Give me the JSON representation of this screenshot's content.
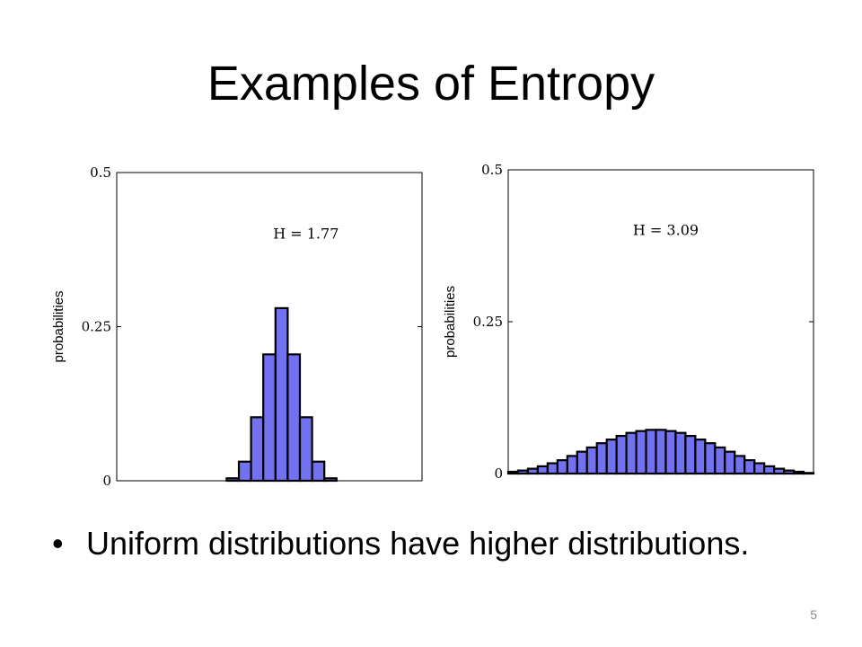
{
  "slide": {
    "title": "Examples of Entropy",
    "bullet_symbol": "•",
    "bullet_text": "Uniform distributions have higher distributions.",
    "slide_number": "5"
  },
  "colors": {
    "bar_fill": "#7272f0",
    "bar_edge": "#000000"
  },
  "chart_data": [
    {
      "type": "bar",
      "title": "",
      "xlabel": "",
      "ylabel": "probabilities",
      "ylim": [
        0,
        0.5
      ],
      "y_ticks": [
        {
          "value": 0,
          "label": "0"
        },
        {
          "value": 0.25,
          "label": "0.25"
        },
        {
          "value": 0.5,
          "label": "0.5"
        }
      ],
      "annotation": {
        "text": "H = 1.77",
        "x": 15,
        "y": 0.4
      },
      "x": [
        0,
        1,
        2,
        3,
        4,
        5,
        6,
        7,
        8,
        9,
        10,
        11,
        12,
        13,
        14,
        15,
        16,
        17,
        18,
        19,
        20,
        21,
        22,
        23,
        24
      ],
      "values": [
        0,
        0,
        0,
        0,
        0,
        0,
        0,
        0,
        0,
        0.004,
        0.031,
        0.103,
        0.205,
        0.28,
        0.205,
        0.103,
        0.031,
        0.004,
        0,
        0,
        0,
        0,
        0,
        0,
        0
      ],
      "xlim": [
        -0.5,
        24.5
      ],
      "grid": false,
      "legend": "none"
    },
    {
      "type": "bar",
      "title": "",
      "xlabel": "",
      "ylabel": "probabilities",
      "ylim": [
        0,
        0.5
      ],
      "y_ticks": [
        {
          "value": 0,
          "label": "0"
        },
        {
          "value": 0.25,
          "label": "0.25"
        },
        {
          "value": 0.5,
          "label": "0.5"
        }
      ],
      "annotation": {
        "text": "H = 3.09",
        "x": 15.5,
        "y": 0.4
      },
      "x": [
        0,
        1,
        2,
        3,
        4,
        5,
        6,
        7,
        8,
        9,
        10,
        11,
        12,
        13,
        14,
        15,
        16,
        17,
        18,
        19,
        20,
        21,
        22,
        23,
        24,
        25,
        26,
        27,
        28,
        29,
        30
      ],
      "values": [
        0.003,
        0.005,
        0.008,
        0.012,
        0.017,
        0.022,
        0.029,
        0.036,
        0.043,
        0.05,
        0.056,
        0.062,
        0.067,
        0.07,
        0.072,
        0.072,
        0.07,
        0.067,
        0.062,
        0.056,
        0.05,
        0.043,
        0.036,
        0.029,
        0.022,
        0.017,
        0.012,
        0.008,
        0.005,
        0.003,
        0.001
      ],
      "xlim": [
        -0.5,
        30.5
      ],
      "grid": false,
      "legend": "none"
    }
  ]
}
